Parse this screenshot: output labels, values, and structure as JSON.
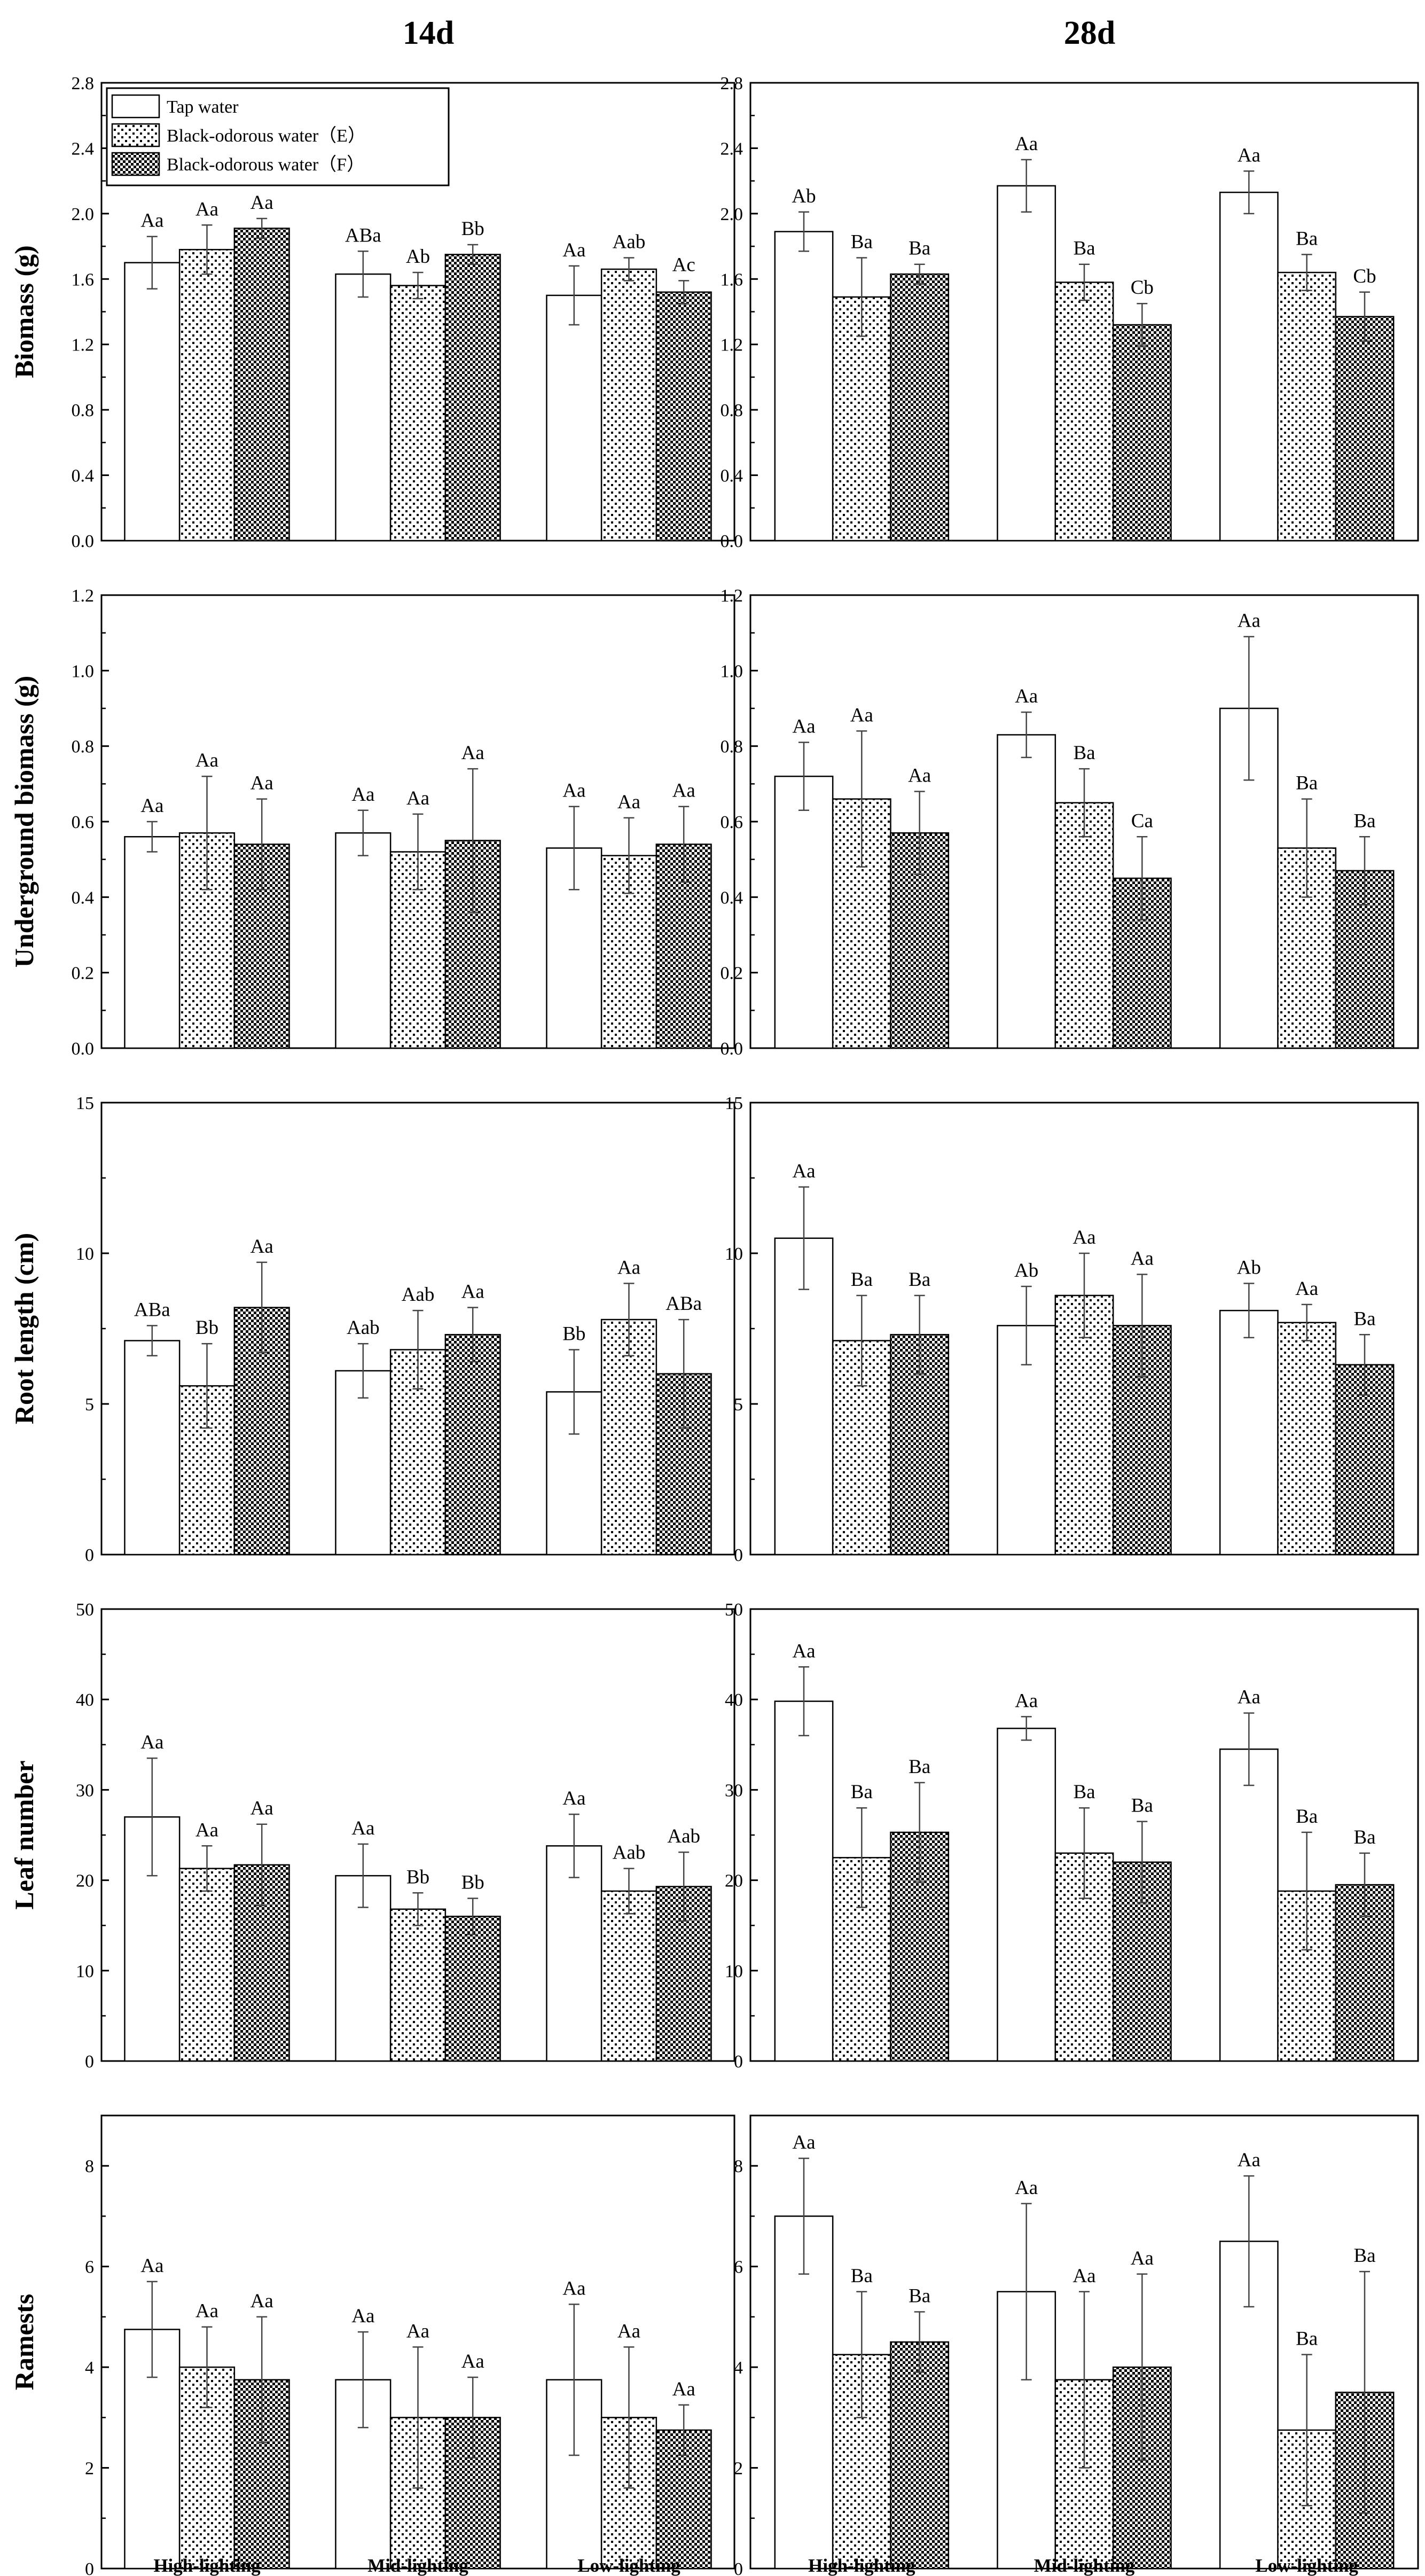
{
  "figure": {
    "column_titles": [
      "14d",
      "28d"
    ],
    "categories": [
      "High-lighting",
      "Mid-lighting",
      "Low-lighting"
    ],
    "legend": [
      "Tap water",
      "Black-odorous water（E）",
      "Black-odorous water（F）"
    ]
  },
  "chart_data": [
    {
      "type": "bar",
      "panel": "14d",
      "ylabel": "Biomass (g)",
      "ylim": [
        0,
        2.8
      ],
      "yticks": [
        0.0,
        0.4,
        0.8,
        1.2,
        1.6,
        2.0,
        2.4,
        2.8
      ],
      "tick_decimals": 1,
      "categories": [
        "High-lighting",
        "Mid-lighting",
        "Low-lighting"
      ],
      "series": [
        {
          "name": "Tap water",
          "values": [
            1.7,
            1.63,
            1.5
          ],
          "errors": [
            0.16,
            0.14,
            0.18
          ],
          "letters": [
            "Aa",
            "ABa",
            "Aa"
          ]
        },
        {
          "name": "Black-odorous water（E）",
          "values": [
            1.78,
            1.56,
            1.66
          ],
          "errors": [
            0.15,
            0.08,
            0.07
          ],
          "letters": [
            "Aa",
            "Ab",
            "Aab"
          ]
        },
        {
          "name": "Black-odorous water（F）",
          "values": [
            1.91,
            1.75,
            1.52
          ],
          "errors": [
            0.06,
            0.06,
            0.07
          ],
          "letters": [
            "Aa",
            "Bb",
            "Ac"
          ]
        }
      ]
    },
    {
      "type": "bar",
      "panel": "28d",
      "ylabel": "Biomass (g)",
      "ylim": [
        0,
        2.8
      ],
      "yticks": [
        0.0,
        0.4,
        0.8,
        1.2,
        1.6,
        2.0,
        2.4,
        2.8
      ],
      "tick_decimals": 1,
      "categories": [
        "High-lighting",
        "Mid-lighting",
        "Low-lighting"
      ],
      "series": [
        {
          "name": "Tap water",
          "values": [
            1.89,
            2.17,
            2.13
          ],
          "errors": [
            0.12,
            0.16,
            0.13
          ],
          "letters": [
            "Ab",
            "Aa",
            "Aa"
          ]
        },
        {
          "name": "Black-odorous water（E）",
          "values": [
            1.49,
            1.58,
            1.64
          ],
          "errors": [
            0.24,
            0.11,
            0.11
          ],
          "letters": [
            "Ba",
            "Ba",
            "Ba"
          ]
        },
        {
          "name": "Black-odorous water（F）",
          "values": [
            1.63,
            1.32,
            1.37
          ],
          "errors": [
            0.06,
            0.13,
            0.15
          ],
          "letters": [
            "Ba",
            "Cb",
            "Cb"
          ]
        }
      ]
    },
    {
      "type": "bar",
      "panel": "14d",
      "ylabel": "Underground biomass (g)",
      "ylim": [
        0,
        1.2
      ],
      "yticks": [
        0.0,
        0.2,
        0.4,
        0.6,
        0.8,
        1.0,
        1.2
      ],
      "tick_decimals": 1,
      "categories": [
        "High-lighting",
        "Mid-lighting",
        "Low-lighting"
      ],
      "series": [
        {
          "name": "Tap water",
          "values": [
            0.56,
            0.57,
            0.53
          ],
          "errors": [
            0.04,
            0.06,
            0.11
          ],
          "letters": [
            "Aa",
            "Aa",
            "Aa"
          ]
        },
        {
          "name": "Black-odorous water（E）",
          "values": [
            0.57,
            0.52,
            0.51
          ],
          "errors": [
            0.15,
            0.1,
            0.1
          ],
          "letters": [
            "Aa",
            "Aa",
            "Aa"
          ]
        },
        {
          "name": "Black-odorous water（F）",
          "values": [
            0.54,
            0.55,
            0.54
          ],
          "errors": [
            0.12,
            0.19,
            0.1
          ],
          "letters": [
            "Aa",
            "Aa",
            "Aa"
          ]
        }
      ]
    },
    {
      "type": "bar",
      "panel": "28d",
      "ylabel": "Underground biomass (g)",
      "ylim": [
        0,
        1.2
      ],
      "yticks": [
        0.0,
        0.2,
        0.4,
        0.6,
        0.8,
        1.0,
        1.2
      ],
      "tick_decimals": 1,
      "categories": [
        "High-lighting",
        "Mid-lighting",
        "Low-lighting"
      ],
      "series": [
        {
          "name": "Tap water",
          "values": [
            0.72,
            0.83,
            0.9
          ],
          "errors": [
            0.09,
            0.06,
            0.19
          ],
          "letters": [
            "Aa",
            "Aa",
            "Aa"
          ]
        },
        {
          "name": "Black-odorous water（E）",
          "values": [
            0.66,
            0.65,
            0.53
          ],
          "errors": [
            0.18,
            0.09,
            0.13
          ],
          "letters": [
            "Aa",
            "Ba",
            "Ba"
          ]
        },
        {
          "name": "Black-odorous water（F）",
          "values": [
            0.57,
            0.45,
            0.47
          ],
          "errors": [
            0.11,
            0.11,
            0.09
          ],
          "letters": [
            "Aa",
            "Ca",
            "Ba"
          ]
        }
      ]
    },
    {
      "type": "bar",
      "panel": "14d",
      "ylabel": "Root length (cm)",
      "ylim": [
        0,
        15
      ],
      "yticks": [
        0,
        5,
        10,
        15
      ],
      "tick_decimals": 0,
      "categories": [
        "High-lighting",
        "Mid-lighting",
        "Low-lighting"
      ],
      "series": [
        {
          "name": "Tap water",
          "values": [
            7.1,
            6.1,
            5.4
          ],
          "errors": [
            0.5,
            0.9,
            1.4
          ],
          "letters": [
            "ABa",
            "Aab",
            "Bb"
          ]
        },
        {
          "name": "Black-odorous water（E）",
          "values": [
            5.6,
            6.8,
            7.8
          ],
          "errors": [
            1.4,
            1.3,
            1.2
          ],
          "letters": [
            "Bb",
            "Aab",
            "Aa"
          ]
        },
        {
          "name": "Black-odorous water（F）",
          "values": [
            8.2,
            7.3,
            6.0
          ],
          "errors": [
            1.5,
            0.9,
            1.8
          ],
          "letters": [
            "Aa",
            "Aa",
            "ABa"
          ]
        }
      ]
    },
    {
      "type": "bar",
      "panel": "28d",
      "ylabel": "Root length (cm)",
      "ylim": [
        0,
        15
      ],
      "yticks": [
        0,
        5,
        10,
        15
      ],
      "tick_decimals": 0,
      "categories": [
        "High-lighting",
        "Mid-lighting",
        "Low-lighting"
      ],
      "series": [
        {
          "name": "Tap water",
          "values": [
            10.5,
            7.6,
            8.1
          ],
          "errors": [
            1.7,
            1.3,
            0.9
          ],
          "letters": [
            "Aa",
            "Ab",
            "Ab"
          ]
        },
        {
          "name": "Black-odorous water（E）",
          "values": [
            7.1,
            8.6,
            7.7
          ],
          "errors": [
            1.5,
            1.4,
            0.6
          ],
          "letters": [
            "Ba",
            "Aa",
            "Aa"
          ]
        },
        {
          "name": "Black-odorous water（F）",
          "values": [
            7.3,
            7.6,
            6.3
          ],
          "errors": [
            1.3,
            1.7,
            1.0
          ],
          "letters": [
            "Ba",
            "Aa",
            "Ba"
          ]
        }
      ]
    },
    {
      "type": "bar",
      "panel": "14d",
      "ylabel": "Leaf number",
      "ylim": [
        0,
        50
      ],
      "yticks": [
        0,
        10,
        20,
        30,
        40,
        50
      ],
      "tick_decimals": 0,
      "categories": [
        "High-lighting",
        "Mid-lighting",
        "Low-lighting"
      ],
      "series": [
        {
          "name": "Tap water",
          "values": [
            27.0,
            20.5,
            23.8
          ],
          "errors": [
            6.5,
            3.5,
            3.5
          ],
          "letters": [
            "Aa",
            "Aa",
            "Aa"
          ]
        },
        {
          "name": "Black-odorous water（E）",
          "values": [
            21.3,
            16.8,
            18.8
          ],
          "errors": [
            2.5,
            1.8,
            2.5
          ],
          "letters": [
            "Aa",
            "Bb",
            "Aab"
          ]
        },
        {
          "name": "Black-odorous water（F）",
          "values": [
            21.7,
            16.0,
            19.3
          ],
          "errors": [
            4.5,
            2.0,
            3.8
          ],
          "letters": [
            "Aa",
            "Bb",
            "Aab"
          ]
        }
      ]
    },
    {
      "type": "bar",
      "panel": "28d",
      "ylabel": "Leaf number",
      "ylim": [
        0,
        50
      ],
      "yticks": [
        0,
        10,
        20,
        30,
        40,
        50
      ],
      "tick_decimals": 0,
      "categories": [
        "High-lighting",
        "Mid-lighting",
        "Low-lighting"
      ],
      "series": [
        {
          "name": "Tap water",
          "values": [
            39.8,
            36.8,
            34.5
          ],
          "errors": [
            3.8,
            1.3,
            4.0
          ],
          "letters": [
            "Aa",
            "Aa",
            "Aa"
          ]
        },
        {
          "name": "Black-odorous water（E）",
          "values": [
            22.5,
            23.0,
            18.8
          ],
          "errors": [
            5.5,
            5.0,
            6.5
          ],
          "letters": [
            "Ba",
            "Ba",
            "Ba"
          ]
        },
        {
          "name": "Black-odorous water（F）",
          "values": [
            25.3,
            22.0,
            19.5
          ],
          "errors": [
            5.5,
            4.5,
            3.5
          ],
          "letters": [
            "Ba",
            "Ba",
            "Ba"
          ]
        }
      ]
    },
    {
      "type": "bar",
      "panel": "14d",
      "ylabel": "Ramests",
      "ylim": [
        0,
        9
      ],
      "yticks": [
        0,
        2,
        4,
        6,
        8
      ],
      "tick_decimals": 0,
      "categories": [
        "High-lighting",
        "Mid-lighting",
        "Low-lighting"
      ],
      "series": [
        {
          "name": "Tap water",
          "values": [
            4.75,
            3.75,
            3.75
          ],
          "errors": [
            0.95,
            0.95,
            1.5
          ],
          "letters": [
            "Aa",
            "Aa",
            "Aa"
          ]
        },
        {
          "name": "Black-odorous water（E）",
          "values": [
            4.0,
            3.0,
            3.0
          ],
          "errors": [
            0.8,
            1.4,
            1.4
          ],
          "letters": [
            "Aa",
            "Aa",
            "Aa"
          ]
        },
        {
          "name": "Black-odorous water（F）",
          "values": [
            3.75,
            3.0,
            2.75
          ],
          "errors": [
            1.25,
            0.8,
            0.5
          ],
          "letters": [
            "Aa",
            "Aa",
            "Aa"
          ]
        }
      ]
    },
    {
      "type": "bar",
      "panel": "28d",
      "ylabel": "Ramests",
      "ylim": [
        0,
        9
      ],
      "yticks": [
        0,
        2,
        4,
        6,
        8
      ],
      "tick_decimals": 0,
      "categories": [
        "High-lighting",
        "Mid-lighting",
        "Low-lighting"
      ],
      "series": [
        {
          "name": "Tap water",
          "values": [
            7.0,
            5.5,
            6.5
          ],
          "errors": [
            1.15,
            1.75,
            1.3
          ],
          "letters": [
            "Aa",
            "Aa",
            "Aa"
          ]
        },
        {
          "name": "Black-odorous water（E）",
          "values": [
            4.25,
            3.75,
            2.75
          ],
          "errors": [
            1.25,
            1.75,
            1.5
          ],
          "letters": [
            "Ba",
            "Aa",
            "Ba"
          ]
        },
        {
          "name": "Black-odorous water（F）",
          "values": [
            4.5,
            4.0,
            3.5
          ],
          "errors": [
            0.6,
            1.85,
            2.4
          ],
          "letters": [
            "Ba",
            "Aa",
            "Ba"
          ]
        }
      ]
    }
  ]
}
